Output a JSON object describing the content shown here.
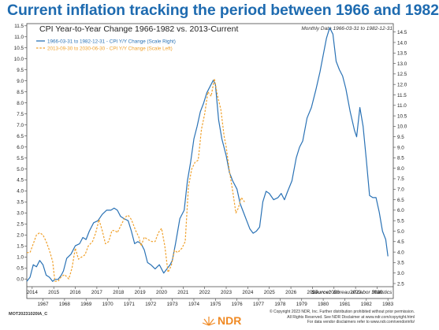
{
  "page": {
    "headline": "Current inflation tracking the period between 1966 and 1982",
    "doc_id": "MOT20231020IA_C",
    "brand": "NDR",
    "copyright_lines": [
      "© Copyright 2023 NDR, Inc. Further distribution prohibited without prior permission.",
      "All Rights Reserved. See NDR Disclaimer at www.ndr.com/copyright.html",
      "For data vendor disclaimers refer to www.ndr.com/vendorinfo/"
    ]
  },
  "chart_data": {
    "type": "line",
    "title": "CPI Year-to-Year Change 1966-1982 vs. 2013-Current",
    "subtitle": "Monthly Data 1966-03-31 to 1982-12-31",
    "source_label": "Source:",
    "source": "Bureau of Labor Statistics",
    "left_axis": {
      "ticks": [
        "0.0",
        "0.5",
        "1.0",
        "1.5",
        "2.0",
        "2.5",
        "3.0",
        "3.5",
        "4.0",
        "4.5",
        "5.0",
        "5.5",
        "6.0",
        "6.5",
        "7.0",
        "7.5",
        "8.0",
        "8.5",
        "9.0",
        "9.5",
        "10.0",
        "10.5",
        "11.0",
        "11.5"
      ],
      "range": [
        -0.35,
        11.6
      ]
    },
    "right_axis": {
      "ticks": [
        "2.5",
        "3.0",
        "3.5",
        "4.0",
        "4.5",
        "5.0",
        "5.5",
        "6.0",
        "6.5",
        "7.0",
        "7.5",
        "8.0",
        "8.5",
        "9.0",
        "9.5",
        "10.0",
        "10.5",
        "11.0",
        "11.5",
        "12.0",
        "12.5",
        "13.0",
        "13.5",
        "14.0",
        "14.5"
      ],
      "range": [
        2.35,
        14.9
      ]
    },
    "x_top_ticks": [
      "2014",
      "2015",
      "2016",
      "2017",
      "2018",
      "2019",
      "2020",
      "2021",
      "2022",
      "2023",
      "2024",
      "2025",
      "2026",
      "2027",
      "2028",
      "2029",
      "2030"
    ],
    "x_top_range": [
      2013.75,
      2030.75
    ],
    "x_bottom_ticks": [
      "1967",
      "1968",
      "1969",
      "1970",
      "1971",
      "1972",
      "1973",
      "1974",
      "1975",
      "1976",
      "1977",
      "1978",
      "1979",
      "1980",
      "1981",
      "1982",
      "1983"
    ],
    "x_bottom_range": [
      1966.25,
      1983.25
    ],
    "grid": false,
    "legend_position": "top-left",
    "series": [
      {
        "name": "1966-03-31 to 1982-12-31 - CPI Y/Y Change (Scale Right)",
        "color": "#2a72b5",
        "axis": "right",
        "x_axis": "bottom",
        "points": [
          [
            1966.25,
            2.6
          ],
          [
            1966.4,
            2.8
          ],
          [
            1966.55,
            3.4
          ],
          [
            1966.7,
            3.3
          ],
          [
            1966.85,
            3.6
          ],
          [
            1967.0,
            3.4
          ],
          [
            1967.15,
            2.9
          ],
          [
            1967.3,
            2.8
          ],
          [
            1967.45,
            2.6
          ],
          [
            1967.55,
            2.7
          ],
          [
            1967.7,
            2.7
          ],
          [
            1967.85,
            2.9
          ],
          [
            1967.95,
            3.1
          ],
          [
            1968.1,
            3.7
          ],
          [
            1968.3,
            3.9
          ],
          [
            1968.5,
            4.3
          ],
          [
            1968.7,
            4.4
          ],
          [
            1968.85,
            4.7
          ],
          [
            1969.0,
            4.6
          ],
          [
            1969.15,
            5.0
          ],
          [
            1969.35,
            5.4
          ],
          [
            1969.55,
            5.5
          ],
          [
            1969.75,
            5.8
          ],
          [
            1969.95,
            6.0
          ],
          [
            1970.15,
            6.0
          ],
          [
            1970.3,
            6.1
          ],
          [
            1970.45,
            6.0
          ],
          [
            1970.6,
            5.7
          ],
          [
            1970.75,
            5.6
          ],
          [
            1970.95,
            5.5
          ],
          [
            1971.1,
            5.0
          ],
          [
            1971.25,
            4.4
          ],
          [
            1971.4,
            4.5
          ],
          [
            1971.55,
            4.4
          ],
          [
            1971.7,
            4.1
          ],
          [
            1971.85,
            3.5
          ],
          [
            1972.0,
            3.4
          ],
          [
            1972.2,
            3.2
          ],
          [
            1972.4,
            3.4
          ],
          [
            1972.6,
            3.0
          ],
          [
            1972.75,
            3.2
          ],
          [
            1972.9,
            3.4
          ],
          [
            1973.0,
            3.6
          ],
          [
            1973.15,
            4.4
          ],
          [
            1973.35,
            5.6
          ],
          [
            1973.55,
            6.0
          ],
          [
            1973.7,
            7.4
          ],
          [
            1973.85,
            8.3
          ],
          [
            1974.0,
            9.4
          ],
          [
            1974.15,
            10.0
          ],
          [
            1974.3,
            10.7
          ],
          [
            1974.45,
            11.1
          ],
          [
            1974.6,
            11.6
          ],
          [
            1974.75,
            11.9
          ],
          [
            1974.9,
            12.2
          ],
          [
            1975.0,
            12.0
          ],
          [
            1975.15,
            10.3
          ],
          [
            1975.3,
            9.4
          ],
          [
            1975.5,
            8.6
          ],
          [
            1975.65,
            7.8
          ],
          [
            1975.8,
            7.4
          ],
          [
            1976.0,
            7.0
          ],
          [
            1976.15,
            6.3
          ],
          [
            1976.3,
            5.9
          ],
          [
            1976.45,
            5.5
          ],
          [
            1976.6,
            5.1
          ],
          [
            1976.75,
            4.9
          ],
          [
            1976.9,
            5.0
          ],
          [
            1977.05,
            5.2
          ],
          [
            1977.2,
            6.4
          ],
          [
            1977.35,
            6.9
          ],
          [
            1977.5,
            6.8
          ],
          [
            1977.7,
            6.5
          ],
          [
            1977.9,
            6.6
          ],
          [
            1978.05,
            6.8
          ],
          [
            1978.2,
            6.5
          ],
          [
            1978.35,
            6.9
          ],
          [
            1978.55,
            7.4
          ],
          [
            1978.75,
            8.5
          ],
          [
            1978.9,
            9.0
          ],
          [
            1979.05,
            9.3
          ],
          [
            1979.25,
            10.4
          ],
          [
            1979.45,
            10.9
          ],
          [
            1979.65,
            11.7
          ],
          [
            1979.85,
            12.6
          ],
          [
            1980.0,
            13.4
          ],
          [
            1980.15,
            14.2
          ],
          [
            1980.3,
            14.7
          ],
          [
            1980.45,
            14.4
          ],
          [
            1980.6,
            13.1
          ],
          [
            1980.75,
            12.7
          ],
          [
            1980.9,
            12.4
          ],
          [
            1981.05,
            11.8
          ],
          [
            1981.25,
            10.7
          ],
          [
            1981.45,
            9.8
          ],
          [
            1981.55,
            9.5
          ],
          [
            1981.7,
            10.9
          ],
          [
            1981.85,
            10.0
          ],
          [
            1982.0,
            8.4
          ],
          [
            1982.15,
            6.7
          ],
          [
            1982.3,
            6.6
          ],
          [
            1982.45,
            6.6
          ],
          [
            1982.6,
            5.9
          ],
          [
            1982.75,
            5.0
          ],
          [
            1982.9,
            4.6
          ],
          [
            1983.0,
            3.8
          ]
        ]
      },
      {
        "name": "2013-09-30 to 2030-06-30 - CPI Y/Y Change (Scale Left)",
        "color": "#f0a02a",
        "axis": "left",
        "x_axis": "top",
        "dashed": true,
        "points": [
          [
            2013.75,
            1.2
          ],
          [
            2013.9,
            1.2
          ],
          [
            2014.05,
            1.6
          ],
          [
            2014.2,
            2.0
          ],
          [
            2014.35,
            2.1
          ],
          [
            2014.5,
            2.0
          ],
          [
            2014.65,
            1.7
          ],
          [
            2014.8,
            1.3
          ],
          [
            2014.95,
            0.8
          ],
          [
            2015.05,
            -0.1
          ],
          [
            2015.2,
            -0.1
          ],
          [
            2015.35,
            0.1
          ],
          [
            2015.5,
            0.2
          ],
          [
            2015.7,
            0.0
          ],
          [
            2015.85,
            0.5
          ],
          [
            2016.0,
            1.4
          ],
          [
            2016.15,
            0.9
          ],
          [
            2016.3,
            1.0
          ],
          [
            2016.45,
            1.1
          ],
          [
            2016.6,
            1.5
          ],
          [
            2016.8,
            1.7
          ],
          [
            2016.95,
            2.1
          ],
          [
            2017.1,
            2.7
          ],
          [
            2017.25,
            2.2
          ],
          [
            2017.4,
            1.6
          ],
          [
            2017.55,
            1.7
          ],
          [
            2017.7,
            2.2
          ],
          [
            2017.85,
            2.2
          ],
          [
            2017.95,
            2.1
          ],
          [
            2018.1,
            2.4
          ],
          [
            2018.3,
            2.8
          ],
          [
            2018.45,
            2.9
          ],
          [
            2018.6,
            2.7
          ],
          [
            2018.8,
            2.2
          ],
          [
            2018.95,
            1.9
          ],
          [
            2019.05,
            1.5
          ],
          [
            2019.2,
            1.9
          ],
          [
            2019.35,
            1.8
          ],
          [
            2019.55,
            1.7
          ],
          [
            2019.7,
            1.7
          ],
          [
            2019.85,
            2.1
          ],
          [
            2020.0,
            2.3
          ],
          [
            2020.15,
            1.5
          ],
          [
            2020.3,
            0.3
          ],
          [
            2020.45,
            0.6
          ],
          [
            2020.6,
            1.3
          ],
          [
            2020.75,
            1.2
          ],
          [
            2020.95,
            1.4
          ],
          [
            2021.1,
            1.7
          ],
          [
            2021.25,
            4.2
          ],
          [
            2021.4,
            5.0
          ],
          [
            2021.55,
            5.3
          ],
          [
            2021.7,
            5.4
          ],
          [
            2021.85,
            6.8
          ],
          [
            2022.0,
            7.5
          ],
          [
            2022.15,
            8.5
          ],
          [
            2022.3,
            8.3
          ],
          [
            2022.45,
            9.1
          ],
          [
            2022.6,
            8.3
          ],
          [
            2022.75,
            7.7
          ],
          [
            2022.9,
            6.5
          ],
          [
            2023.0,
            6.0
          ],
          [
            2023.15,
            4.9
          ],
          [
            2023.3,
            4.0
          ],
          [
            2023.45,
            3.0
          ],
          [
            2023.55,
            3.2
          ],
          [
            2023.7,
            3.7
          ],
          [
            2023.85,
            3.5
          ]
        ]
      }
    ]
  }
}
